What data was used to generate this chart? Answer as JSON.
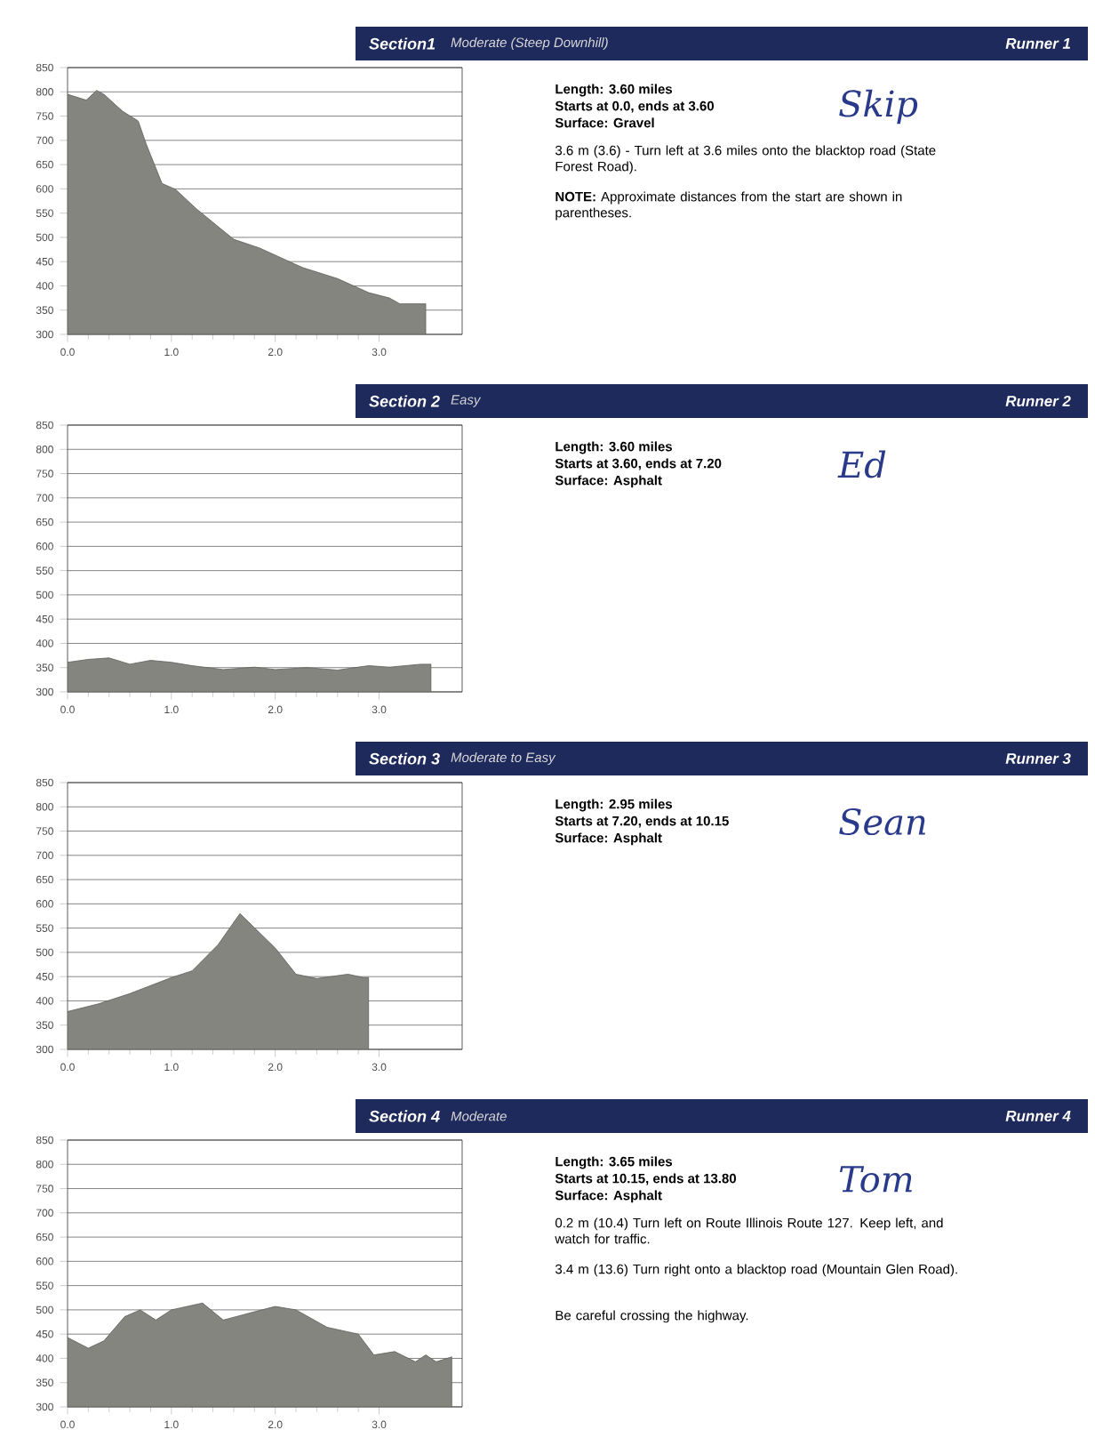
{
  "chart_data": [
    {
      "type": "area",
      "title": "Section1",
      "subtitle": "Moderate (Steep Downhill)",
      "annotations": [
        "Runner 1",
        "Skip",
        "Length: 3.60 miles",
        "Starts at 0.0, ends at 3.60",
        "Surface: Gravel",
        "3.6 m (3.6) - Turn left at 3.6 miles onto the blacktop road (State Forest Road).",
        "**NOTE:** Approximate distances from the start are shown in parentheses."
      ],
      "x": [
        0,
        0.18,
        0.28,
        0.35,
        0.53,
        0.68,
        0.76,
        0.91,
        1.04,
        1.24,
        1.6,
        1.85,
        2.26,
        2.6,
        2.9,
        3.1,
        3.2,
        3.45
      ],
      "values": [
        795,
        783,
        803,
        795,
        760,
        740,
        691,
        611,
        599,
        559,
        496,
        478,
        438,
        415,
        386,
        375,
        363,
        363
      ],
      "color": "#85857f",
      "xlim": [
        0,
        3.8
      ],
      "ylim": [
        300,
        850
      ],
      "xticks": [
        {
          "value": 0,
          "label": "0.0"
        },
        {
          "value": 1,
          "label": "1.0"
        },
        {
          "value": 2,
          "label": "2.0"
        },
        {
          "value": 3,
          "label": "3.0"
        }
      ],
      "yticks": [
        300,
        350,
        400,
        450,
        500,
        550,
        600,
        650,
        700,
        750,
        800,
        850
      ],
      "grid": "y"
    },
    {
      "type": "area",
      "title": "Section 2",
      "subtitle": "Easy",
      "annotations": [
        "Runner 2",
        "Ed",
        "Length: 3.60 miles",
        "Starts at 3.60, ends at 7.20",
        "Surface: Asphalt"
      ],
      "x": [
        0,
        0.2,
        0.4,
        0.6,
        0.8,
        1.0,
        1.2,
        1.5,
        1.8,
        2.0,
        2.3,
        2.6,
        2.9,
        3.1,
        3.4,
        3.5
      ],
      "values": [
        361,
        367,
        370,
        357,
        365,
        361,
        354,
        346,
        351,
        346,
        350,
        345,
        354,
        351,
        357,
        357
      ],
      "color": "#85857f",
      "xlim": [
        0,
        3.8
      ],
      "ylim": [
        300,
        850
      ],
      "xticks": [
        {
          "value": 0,
          "label": "0.0"
        },
        {
          "value": 1,
          "label": "1.0"
        },
        {
          "value": 2,
          "label": "2.0"
        },
        {
          "value": 3,
          "label": "3.0"
        }
      ],
      "yticks": [
        300,
        350,
        400,
        450,
        500,
        550,
        600,
        650,
        700,
        750,
        800,
        850
      ],
      "grid": "y"
    },
    {
      "type": "area",
      "title": "Section 3",
      "subtitle": "Moderate to Easy",
      "annotations": [
        "Runner 3",
        "Sean",
        "Length: 2.95 miles",
        "Starts at 7.20, ends at 10.15",
        "Surface: Asphalt"
      ],
      "x": [
        0,
        0.3,
        0.6,
        1.0,
        1.2,
        1.45,
        1.66,
        2.0,
        2.2,
        2.4,
        2.7,
        2.85,
        2.9
      ],
      "values": [
        378,
        394,
        415,
        448,
        462,
        516,
        580,
        509,
        455,
        446,
        455,
        448,
        448
      ],
      "color": "#85857f",
      "xlim": [
        0,
        3.8
      ],
      "ylim": [
        300,
        850
      ],
      "xticks": [
        {
          "value": 0,
          "label": "0.0"
        },
        {
          "value": 1,
          "label": "1.0"
        },
        {
          "value": 2,
          "label": "2.0"
        },
        {
          "value": 3,
          "label": "3.0"
        }
      ],
      "yticks": [
        300,
        350,
        400,
        450,
        500,
        550,
        600,
        650,
        700,
        750,
        800,
        850
      ],
      "grid": "y"
    },
    {
      "type": "area",
      "title": "Section 4",
      "subtitle": "Moderate",
      "annotations": [
        "Runner 4",
        "Tom",
        "Length: 3.65 miles",
        "Starts at 10.15, ends at 13.80",
        "Surface: Asphalt",
        "0.2 m (10.4) Turn left on Route Illinois Route 127. Keep left, and watch for traffic.",
        "3.4 m (13.6) Turn right onto a blacktop road (Mountain Glen Road).",
        "Be careful crossing the highway."
      ],
      "x": [
        0,
        0.2,
        0.35,
        0.55,
        0.7,
        0.85,
        1.0,
        1.3,
        1.5,
        1.8,
        2.0,
        2.2,
        2.5,
        2.8,
        2.95,
        3.15,
        3.35,
        3.45,
        3.55,
        3.7
      ],
      "values": [
        443,
        421,
        436,
        486,
        500,
        479,
        500,
        514,
        479,
        496,
        507,
        500,
        464,
        450,
        407,
        414,
        393,
        407,
        393,
        403
      ],
      "color": "#85857f",
      "xlim": [
        0,
        3.8
      ],
      "ylim": [
        300,
        850
      ],
      "xticks": [
        {
          "value": 0,
          "label": "0.0"
        },
        {
          "value": 1,
          "label": "1.0"
        },
        {
          "value": 2,
          "label": "2.0"
        },
        {
          "value": 3,
          "label": "3.0"
        }
      ],
      "yticks": [
        300,
        350,
        400,
        450,
        500,
        550,
        600,
        650,
        700,
        750,
        800,
        850
      ],
      "grid": "y"
    }
  ]
}
